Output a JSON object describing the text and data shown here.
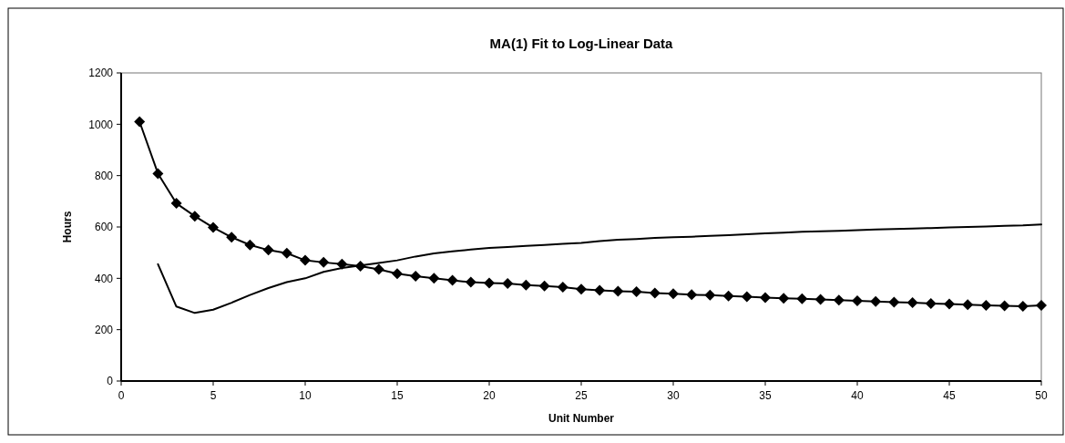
{
  "chart_data": {
    "type": "line",
    "title": "MA(1) Fit to Log-Linear Data",
    "xlabel": "Unit Number",
    "ylabel": "Hours",
    "xlim": [
      0,
      50
    ],
    "xticks": [
      0,
      5,
      10,
      15,
      20,
      25,
      30,
      35,
      40,
      45,
      50
    ],
    "ylim": [
      0,
      1200
    ],
    "yticks": [
      0,
      200,
      400,
      600,
      800,
      1000,
      1200
    ],
    "series": [
      {
        "color": "#000000",
        "marker": "diamond",
        "x": [
          1,
          2,
          3,
          4,
          5,
          6,
          7,
          8,
          9,
          10,
          11,
          12,
          13,
          14,
          15,
          16,
          17,
          18,
          19,
          20,
          21,
          22,
          23,
          24,
          25,
          26,
          27,
          28,
          29,
          30,
          31,
          32,
          33,
          34,
          35,
          36,
          37,
          38,
          39,
          40,
          41,
          42,
          43,
          44,
          45,
          46,
          47,
          48,
          49,
          50
        ],
        "values": [
          1010,
          808,
          692,
          642,
          598,
          560,
          530,
          510,
          498,
          470,
          462,
          455,
          447,
          435,
          418,
          408,
          400,
          392,
          385,
          382,
          380,
          374,
          370,
          366,
          358,
          353,
          350,
          348,
          343,
          340,
          336,
          335,
          331,
          328,
          325,
          322,
          320,
          318,
          315,
          312,
          310,
          307,
          305,
          302,
          300,
          297,
          295,
          293,
          291,
          295
        ]
      },
      {
        "color": "#000000",
        "marker": "none",
        "x": [
          2,
          3,
          4,
          5,
          6,
          7,
          8,
          9,
          10,
          11,
          12,
          13,
          14,
          15,
          16,
          17,
          18,
          19,
          20,
          21,
          22,
          23,
          24,
          25,
          26,
          27,
          28,
          29,
          30,
          31,
          32,
          33,
          34,
          35,
          36,
          37,
          38,
          39,
          40,
          41,
          42,
          43,
          44,
          45,
          46,
          47,
          48,
          49,
          50
        ],
        "values": [
          455,
          290,
          265,
          278,
          305,
          335,
          362,
          385,
          400,
          425,
          440,
          450,
          460,
          470,
          485,
          497,
          505,
          512,
          518,
          522,
          526,
          530,
          534,
          538,
          545,
          550,
          553,
          557,
          560,
          562,
          565,
          568,
          572,
          575,
          578,
          581,
          583,
          585,
          588,
          590,
          592,
          594,
          596,
          598,
          600,
          602,
          604,
          606,
          610
        ]
      }
    ]
  }
}
